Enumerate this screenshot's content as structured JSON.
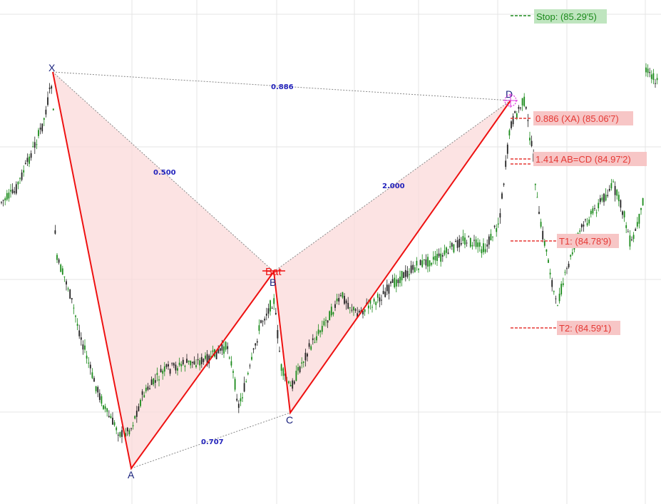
{
  "chart_data": {
    "type": "candlestick-harmonic-pattern",
    "pattern_label": "Bat",
    "pivots": [
      {
        "name": "X",
        "price": 85.0
      },
      {
        "name": "A",
        "price": 83.0
      },
      {
        "name": "B",
        "price": 84.0
      },
      {
        "name": "C",
        "price": 83.3
      },
      {
        "name": "D",
        "price": 84.85
      }
    ],
    "ratios": [
      {
        "label": "0.886",
        "between": "X-D"
      },
      {
        "label": "0.500",
        "between": "X-B"
      },
      {
        "label": "2.000",
        "between": "B-D"
      },
      {
        "label": "0.707",
        "between": "A-C"
      }
    ],
    "levels": [
      {
        "label": "Stop: (85.29'5)",
        "kind": "stop",
        "color": "#1b8a1b",
        "bg": "#bfe5bf"
      },
      {
        "label": "0.886 (XA) (85.06'7)",
        "kind": "entry",
        "color": "#e53935",
        "bg": "#f7c6c6"
      },
      {
        "label": "1.414 AB=CD (84.97'2)",
        "kind": "entry",
        "color": "#e53935",
        "bg": "#f7c6c6"
      },
      {
        "label": "T1: (84.78'9)",
        "kind": "target",
        "color": "#e53935",
        "bg": "#f7c6c6"
      },
      {
        "label": "T2: (84.59'1)",
        "kind": "target",
        "color": "#e53935",
        "bg": "#f7c6c6"
      }
    ],
    "colors": {
      "pattern_fill": "#fbd9d9",
      "pattern_lines": "#ee1111",
      "ratio_lines": "#888888",
      "ratio_text": "#2222bb",
      "pivot_text": "#1a237e",
      "candle_up": "#1a8a1a",
      "candle_down": "#222222",
      "d_marker": "#dd33dd"
    },
    "grid": true
  }
}
